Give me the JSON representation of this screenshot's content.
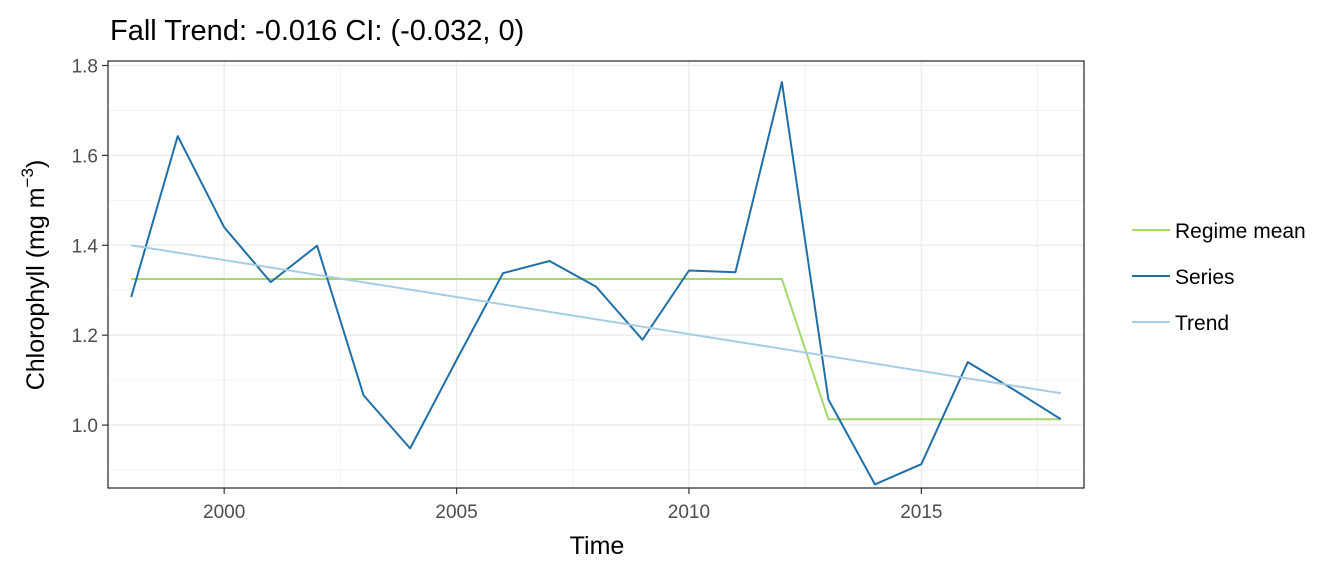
{
  "chart_data": {
    "type": "line",
    "title": "Fall Trend: -0.016 CI: (-0.032, 0)",
    "xlabel": "Time",
    "ylabel": "Chlorophyll (mg m",
    "ylabel_superscript": "−3",
    "ylabel_close": ")",
    "xlim": [
      1997.5,
      2018.5
    ],
    "ylim": [
      0.86,
      1.81
    ],
    "x_ticks": [
      2000,
      2005,
      2010,
      2015
    ],
    "x_tick_labels": [
      "2000",
      "2005",
      "2010",
      "2015"
    ],
    "y_ticks": [
      1.0,
      1.2,
      1.4,
      1.6,
      1.8
    ],
    "y_tick_labels": [
      "1.0",
      "1.2",
      "1.4",
      "1.6",
      "1.8"
    ],
    "grid": true,
    "legend_position": "right",
    "series": [
      {
        "name": "Regime mean",
        "color": "#a6d96a",
        "x": [
          1998,
          2012,
          2013,
          2018
        ],
        "values": [
          1.325,
          1.325,
          1.013,
          1.013
        ]
      },
      {
        "name": "Series",
        "color": "#1f6fa8",
        "x": [
          1998,
          1999,
          2000,
          2001,
          2002,
          2003,
          2004,
          2005,
          2006,
          2007,
          2008,
          2009,
          2010,
          2011,
          2012,
          2013,
          2014,
          2015,
          2016,
          2017,
          2018
        ],
        "values": [
          1.285,
          1.643,
          1.44,
          1.318,
          1.399,
          1.066,
          0.948,
          1.145,
          1.338,
          1.365,
          1.308,
          1.19,
          1.344,
          1.34,
          1.763,
          1.057,
          0.868,
          0.913,
          1.14,
          1.078,
          1.013
        ]
      },
      {
        "name": "Trend",
        "color": "#a6cee3",
        "x": [
          1998,
          2018
        ],
        "values": [
          1.4,
          1.071
        ]
      }
    ]
  }
}
